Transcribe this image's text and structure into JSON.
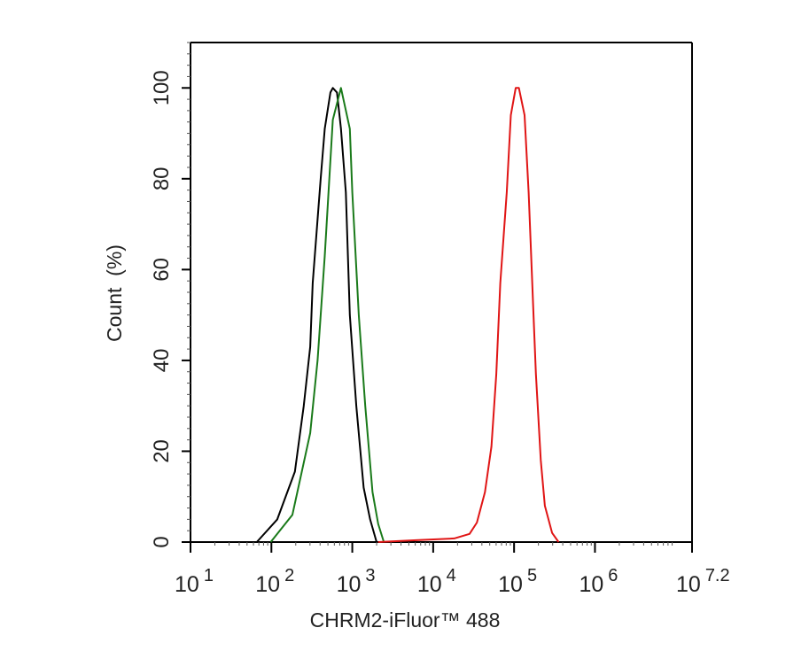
{
  "chart_data": {
    "type": "line",
    "title": "",
    "xlabel": "CHRM2-iFluor™ 488",
    "ylabel": "Count  (%)",
    "xscale": "log",
    "xlim": [
      10,
      15848932
    ],
    "ylim": [
      0,
      110
    ],
    "xticks": [
      {
        "base": "10",
        "exp": "1",
        "value": 10
      },
      {
        "base": "10",
        "exp": "2",
        "value": 100
      },
      {
        "base": "10",
        "exp": "3",
        "value": 1000
      },
      {
        "base": "10",
        "exp": "4",
        "value": 10000
      },
      {
        "base": "10",
        "exp": "5",
        "value": 100000
      },
      {
        "base": "10",
        "exp": "6",
        "value": 1000000
      },
      {
        "base": "10",
        "exp": "7.2",
        "value": 15848932
      }
    ],
    "yticks": [
      "0",
      "20",
      "40",
      "60",
      "80",
      "100"
    ],
    "grid": false,
    "legend": "none",
    "series": [
      {
        "color": "#000000",
        "points": [
          [
            66,
            0
          ],
          [
            118,
            5
          ],
          [
            195,
            15.5
          ],
          [
            251,
            30
          ],
          [
            302,
            43
          ],
          [
            324,
            57
          ],
          [
            407,
            80
          ],
          [
            457,
            91
          ],
          [
            537,
            99
          ],
          [
            575,
            100
          ],
          [
            646,
            99
          ],
          [
            724,
            91
          ],
          [
            832,
            77
          ],
          [
            933,
            50
          ],
          [
            1122,
            30
          ],
          [
            1380,
            12
          ],
          [
            1660,
            5
          ],
          [
            1995,
            0
          ]
        ]
      },
      {
        "color": "#1a7a1a",
        "points": [
          [
            98,
            0
          ],
          [
            182,
            6
          ],
          [
            302,
            24
          ],
          [
            372,
            40
          ],
          [
            457,
            63
          ],
          [
            575,
            93
          ],
          [
            724,
            100
          ],
          [
            933,
            91
          ],
          [
            1000,
            77
          ],
          [
            1202,
            50
          ],
          [
            1445,
            30
          ],
          [
            1778,
            11
          ],
          [
            2089,
            4
          ],
          [
            2455,
            0
          ]
        ]
      },
      {
        "color": "#e01515",
        "points": [
          [
            2089,
            0
          ],
          [
            6166,
            0.4
          ],
          [
            18200,
            0.8
          ],
          [
            28180,
            1.8
          ],
          [
            34670,
            4.3
          ],
          [
            43650,
            11
          ],
          [
            52480,
            21
          ],
          [
            60260,
            37
          ],
          [
            67610,
            57
          ],
          [
            81280,
            77
          ],
          [
            91200,
            94
          ],
          [
            104700,
            100
          ],
          [
            114800,
            100
          ],
          [
            134900,
            94
          ],
          [
            151400,
            77
          ],
          [
            173800,
            50
          ],
          [
            186200,
            37
          ],
          [
            213800,
            18
          ],
          [
            239900,
            8
          ],
          [
            295100,
            2
          ],
          [
            354800,
            0
          ]
        ]
      }
    ]
  }
}
